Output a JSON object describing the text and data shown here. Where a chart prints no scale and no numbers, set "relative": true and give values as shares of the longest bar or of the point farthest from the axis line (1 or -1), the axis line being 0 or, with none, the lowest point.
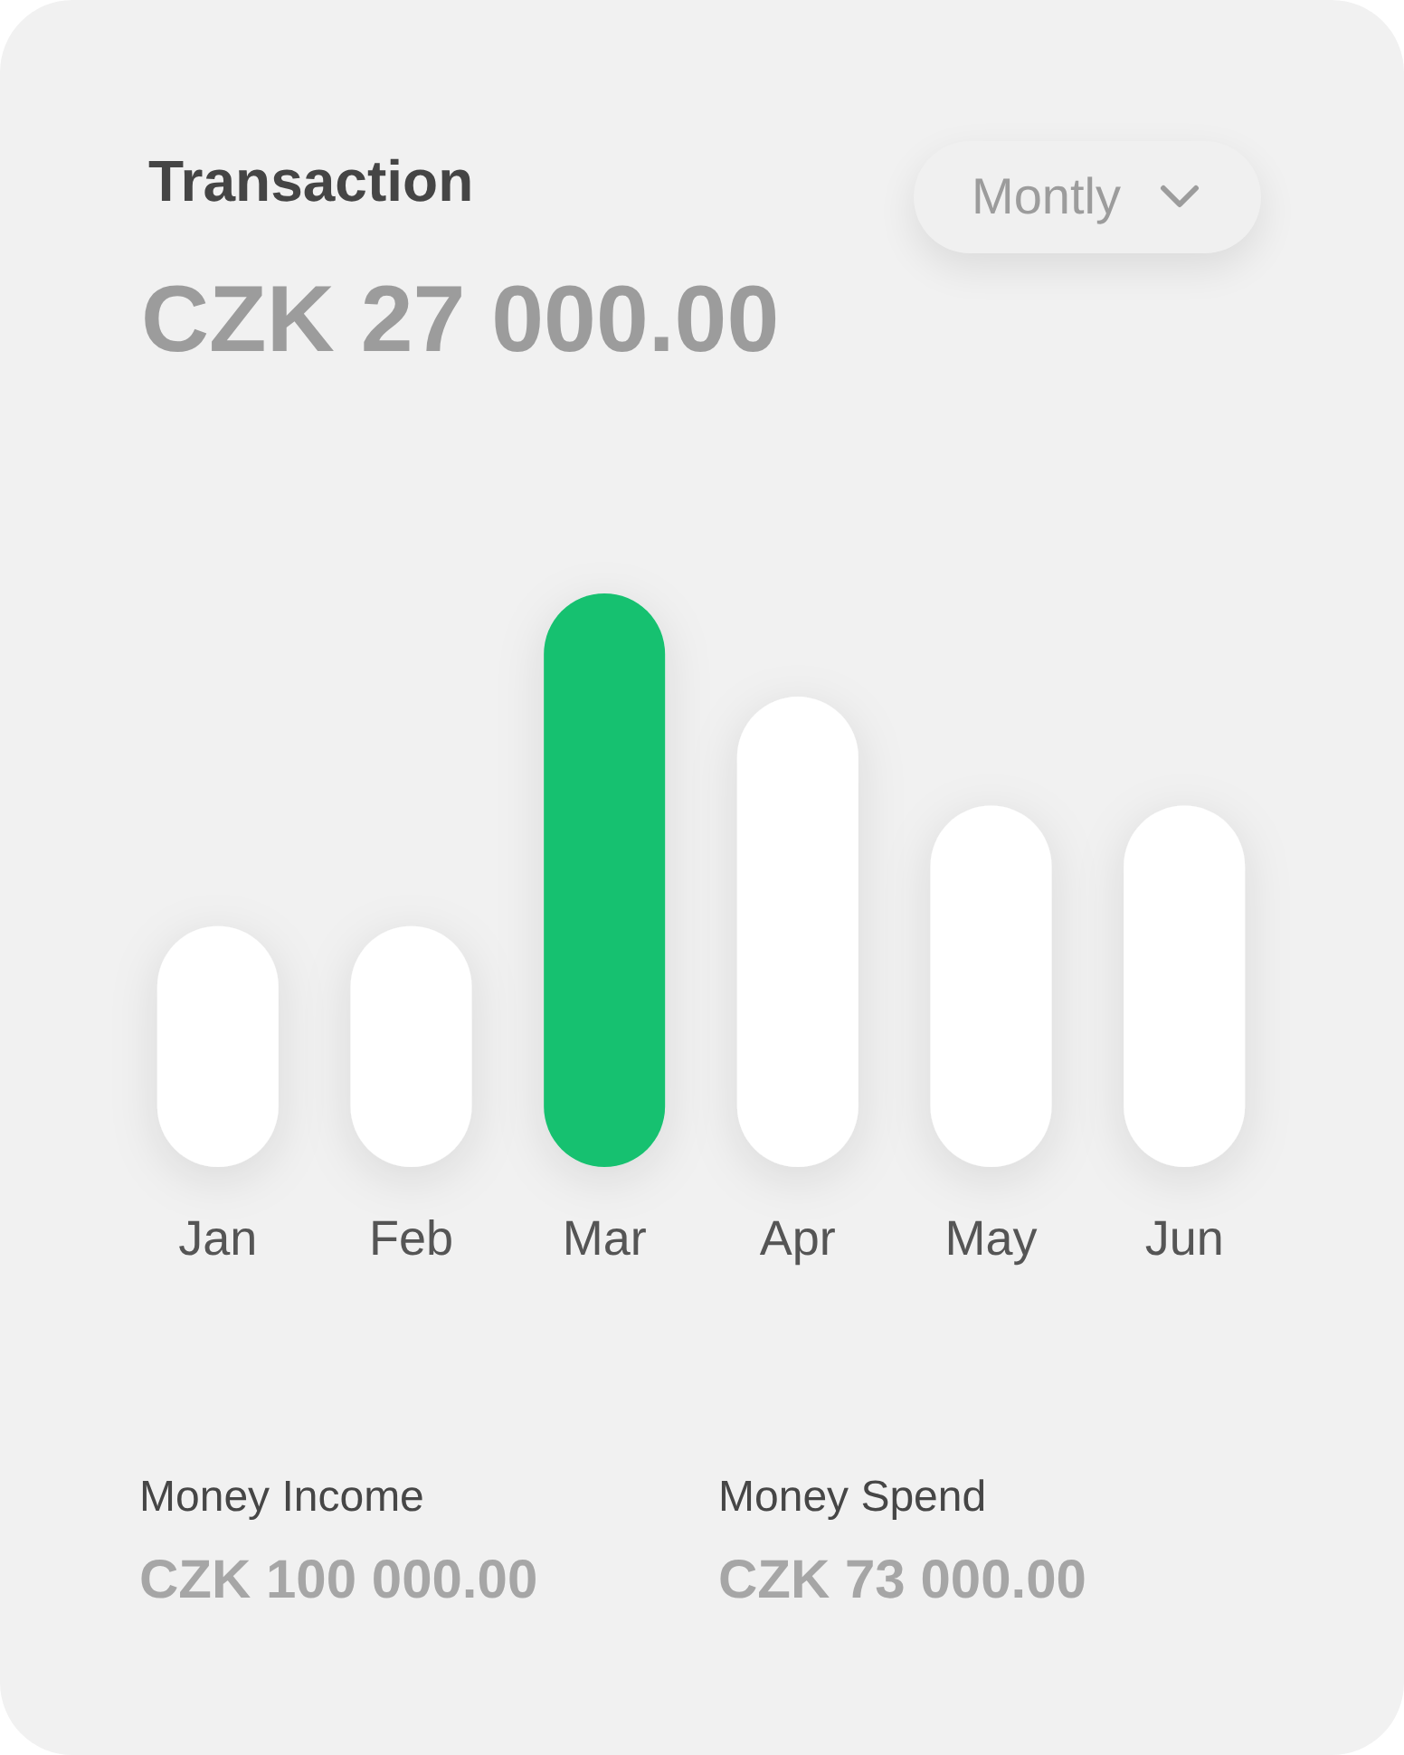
{
  "chart_data": {
    "type": "bar",
    "title": "Transaction",
    "subtitle": "CZK 27 000.00",
    "categories": [
      "Jan",
      "Feb",
      "Mar",
      "Apr",
      "May",
      "Jun"
    ],
    "values": [
      0.42,
      0.42,
      1,
      0.82,
      0.63,
      0.63
    ],
    "colors": [
      "#ffffff",
      "#ffffff",
      "#17c170",
      "#ffffff",
      "#ffffff",
      "#ffffff"
    ],
    "relative": true,
    "annotations": [
      "Montly",
      "Money Income",
      "CZK 100 000.00",
      "Money Spend",
      "CZK 73 000.00"
    ]
  }
}
